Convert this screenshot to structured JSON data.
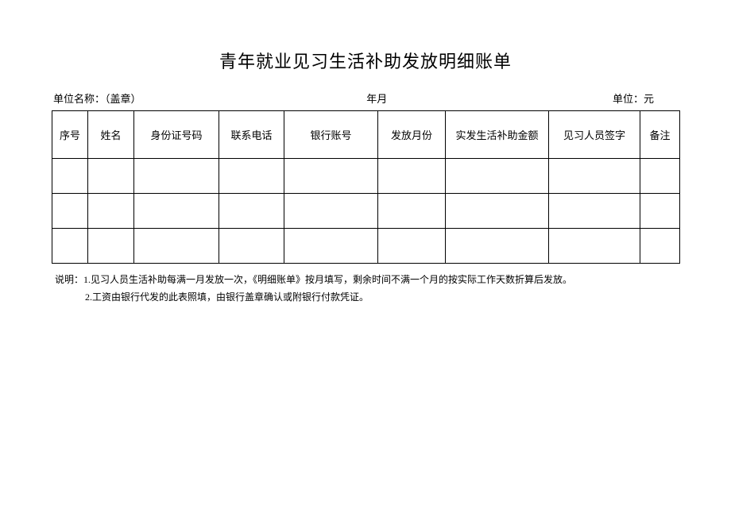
{
  "title": "青年就业见习生活补助发放明细账单",
  "meta": {
    "left_label": "单位名称：",
    "left_value": "（盖章）",
    "center": "年月",
    "right_label": "单位：",
    "right_value": "元"
  },
  "table": {
    "columns": [
      {
        "label": "序号",
        "width": 45
      },
      {
        "label": "姓名",
        "width": 58
      },
      {
        "label": "身份证号码",
        "width": 107
      },
      {
        "label": "联系电话",
        "width": 82
      },
      {
        "label": "银行账号",
        "width": 118
      },
      {
        "label": "发放月份",
        "width": 85
      },
      {
        "label": "实发生活补助金额",
        "width": 130
      },
      {
        "label": "见习人员签字",
        "width": 115
      },
      {
        "label": "备注",
        "width": 50
      }
    ],
    "rows": [
      [
        "",
        "",
        "",
        "",
        "",
        "",
        "",
        "",
        ""
      ],
      [
        "",
        "",
        "",
        "",
        "",
        "",
        "",
        "",
        ""
      ],
      [
        "",
        "",
        "",
        "",
        "",
        "",
        "",
        "",
        ""
      ]
    ]
  },
  "notes": {
    "prefix": "说明：",
    "line1": "1.见习人员生活补助每满一月发放一次，《明细账单》按月填写，剩余时间不满一个月的按实际工作天数折算后发放。",
    "line2": "2.工资由银行代发的此表照填，由银行盖章确认或附银行付款凭证。"
  }
}
